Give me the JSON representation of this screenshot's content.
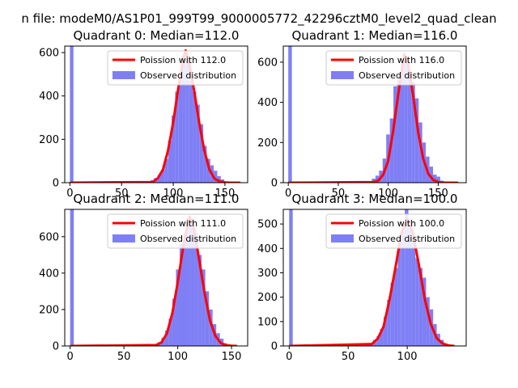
{
  "figure_title": "n file: modeM0/AS1P01_999T99_9000005772_42296cztM0_level2_quad_clean",
  "colors": {
    "hist": "#7f7ff5",
    "fit": "#ff0000",
    "axis": "#000000",
    "background": "#ffffff"
  },
  "chart_data": [
    {
      "type": "histogram",
      "title": "Quadrant 0: Median=112.0",
      "median": 112.0,
      "xlim": [
        -5,
        172
      ],
      "ylim": [
        0,
        630
      ],
      "xticks": [
        0,
        50,
        100,
        150
      ],
      "yticks": [
        0,
        200,
        400,
        600
      ],
      "bin_width": 3.4,
      "zero_bin": {
        "x": 0,
        "value": 630
      },
      "bins_x": [
        78,
        81.4,
        84.8,
        88.2,
        91.6,
        95,
        98.4,
        101.8,
        105.2,
        108.6,
        112,
        115.4,
        118.8,
        122.2,
        125.6,
        129,
        132.4,
        135.8,
        139.2,
        142.6,
        146,
        149.4,
        152.8
      ],
      "bins_values": [
        12,
        22,
        35,
        60,
        110,
        195,
        310,
        420,
        500,
        585,
        560,
        470,
        420,
        360,
        270,
        170,
        110,
        80,
        55,
        30,
        15,
        6,
        2
      ],
      "fit_x": [
        0,
        80,
        85,
        90,
        95,
        100,
        105,
        110,
        112,
        115,
        120,
        125,
        130,
        135,
        140,
        145,
        150,
        155,
        160,
        165
      ],
      "fit_values": [
        0,
        3,
        20,
        60,
        150,
        280,
        440,
        580,
        610,
        560,
        430,
        280,
        150,
        60,
        18,
        6,
        1,
        0,
        0,
        0
      ],
      "legend": [
        "Poission with 112.0",
        "Observed distribution"
      ]
    },
    {
      "type": "histogram",
      "title": "Quadrant 1: Median=116.0",
      "median": 116.0,
      "xlim": [
        -5,
        178
      ],
      "ylim": [
        0,
        680
      ],
      "xticks": [
        0,
        50,
        100,
        150
      ],
      "yticks": [
        0,
        200,
        400,
        600
      ],
      "bin_width": 3.6,
      "zero_bin": {
        "x": 0,
        "value": 680
      },
      "bins_x": [
        80,
        83.6,
        87.2,
        90.8,
        94.4,
        98,
        101.6,
        105.2,
        108.8,
        112.4,
        116,
        119.6,
        123.2,
        126.8,
        130.4,
        134,
        137.6,
        141.2,
        144.8,
        148.4,
        152
      ],
      "bins_values": [
        8,
        20,
        35,
        60,
        120,
        240,
        320,
        480,
        510,
        600,
        620,
        540,
        500,
        420,
        300,
        200,
        130,
        80,
        40,
        30,
        10
      ],
      "fit_x": [
        0,
        85,
        90,
        95,
        100,
        105,
        110,
        115,
        116,
        120,
        125,
        130,
        135,
        140,
        145,
        150,
        155,
        165,
        170
      ],
      "fit_values": [
        0,
        3,
        10,
        40,
        110,
        260,
        440,
        600,
        640,
        590,
        430,
        250,
        120,
        45,
        14,
        3,
        0,
        0,
        0
      ],
      "legend": [
        "Poission with 116.0",
        "Observed distribution"
      ]
    },
    {
      "type": "histogram",
      "title": "Quadrant 2: Median=111.0",
      "median": 111.0,
      "xlim": [
        -5,
        165
      ],
      "ylim": [
        0,
        750
      ],
      "xticks": [
        0,
        50,
        100,
        150
      ],
      "yticks": [
        0,
        200,
        400,
        600
      ],
      "bin_width": 3.4,
      "zero_bin": {
        "x": 0,
        "value": 750
      },
      "bins_x": [
        78,
        81.4,
        84.8,
        88.2,
        91.6,
        95,
        98.4,
        101.8,
        105.2,
        108.6,
        112,
        115.4,
        118.8,
        122.2,
        125.6,
        129,
        132.4,
        135.8,
        139.2,
        142.6,
        146
      ],
      "bins_values": [
        10,
        20,
        45,
        85,
        150,
        260,
        420,
        560,
        620,
        690,
        700,
        620,
        500,
        420,
        300,
        200,
        120,
        70,
        40,
        15,
        5
      ],
      "fit_x": [
        0,
        80,
        85,
        90,
        95,
        100,
        105,
        110,
        111,
        115,
        120,
        125,
        130,
        135,
        140,
        145,
        150,
        155
      ],
      "fit_values": [
        0,
        5,
        20,
        70,
        180,
        350,
        540,
        690,
        710,
        650,
        470,
        290,
        140,
        55,
        16,
        4,
        1,
        0
      ],
      "legend": [
        "Poission with 111.0",
        "Observed distribution"
      ]
    },
    {
      "type": "histogram",
      "title": "Quadrant 3: Median=100.0",
      "median": 100.0,
      "xlim": [
        -5,
        150
      ],
      "ylim": [
        0,
        560
      ],
      "xticks": [
        0,
        50,
        100
      ],
      "yticks": [
        0,
        100,
        200,
        300,
        400,
        500
      ],
      "bin_width": 3.0,
      "zero_bin": {
        "x": 0,
        "value": 560
      },
      "bins_x": [
        65,
        68,
        71,
        74,
        77,
        80,
        83,
        86,
        89,
        92,
        95,
        98,
        101,
        104,
        107,
        110,
        113,
        116,
        119,
        122,
        125,
        128,
        131,
        134
      ],
      "bins_values": [
        5,
        12,
        25,
        40,
        70,
        120,
        190,
        260,
        320,
        420,
        470,
        560,
        520,
        440,
        360,
        320,
        280,
        200,
        150,
        90,
        50,
        25,
        10,
        3
      ],
      "fit_x": [
        0,
        70,
        75,
        80,
        85,
        90,
        95,
        100,
        105,
        110,
        115,
        120,
        125,
        130,
        135,
        140
      ],
      "fit_values": [
        0,
        8,
        30,
        80,
        190,
        320,
        460,
        520,
        460,
        330,
        190,
        90,
        32,
        10,
        2,
        0
      ],
      "legend": [
        "Poission with 100.0",
        "Observed distribution"
      ]
    }
  ]
}
